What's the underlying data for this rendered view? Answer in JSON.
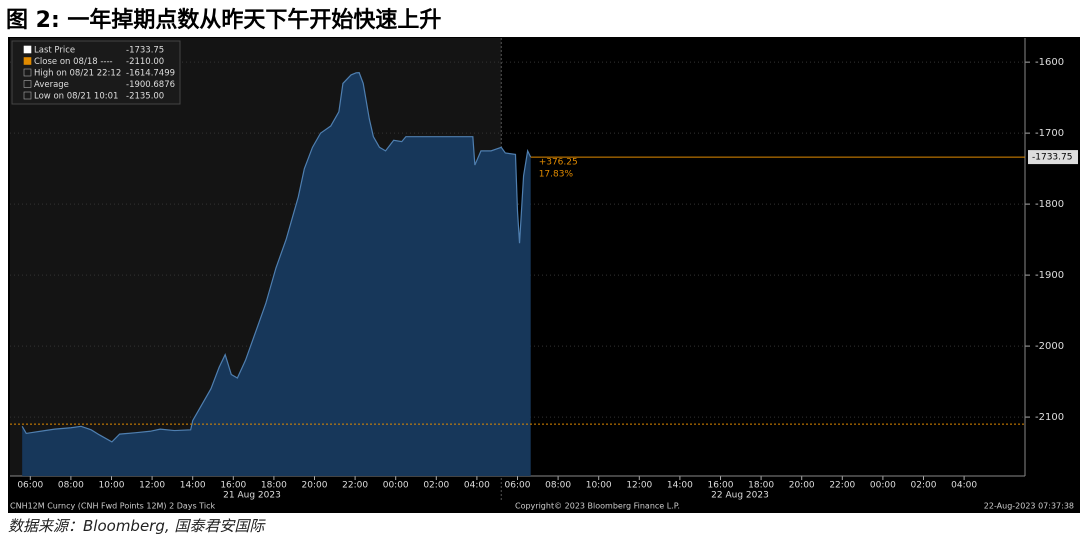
{
  "chart_data": {
    "type": "area",
    "title": "图 2:   一年掉期点数从昨天下午开始快速上升",
    "source": "数据来源：Bloomberg, 国泰君安国际",
    "footer_left": "CNH12M Curncy (CNH Fwd Points 12M) 2 Days  Tick",
    "footer_center": "Copyright© 2023 Bloomberg Finance L.P.",
    "footer_right": "22-Aug-2023 07:37:38",
    "date_labels": [
      "21 Aug 2023",
      "22 Aug 2023"
    ],
    "legend": [
      {
        "name": "Last Price",
        "value_label": "-1733.75"
      },
      {
        "name": "Close on 08/18 ----",
        "value_label": "-2110.00"
      },
      {
        "name": "High on 08/21 22:12",
        "value_label": "-1614.7499"
      },
      {
        "name": "Average",
        "value_label": "-1900.6876"
      },
      {
        "name": "Low on 08/21 10:01",
        "value_label": "-2135.00"
      }
    ],
    "last_price": -1733.75,
    "last_price_label": "-1733.75",
    "close": -2110,
    "change_labels": [
      "+376.25",
      "17.83%"
    ],
    "x": [
      5.6,
      5.8,
      6.5,
      7.2,
      8.0,
      8.5,
      9.0,
      9.4,
      10.02,
      10.4,
      11.2,
      11.9,
      12.4,
      13.1,
      13.9,
      14.0,
      14.4,
      14.9,
      15.3,
      15.6,
      15.9,
      16.2,
      16.6,
      17.1,
      17.6,
      18.1,
      18.6,
      18.9,
      19.2,
      19.5,
      19.9,
      20.3,
      20.8,
      21.2,
      21.4,
      21.8,
      22.05,
      22.2,
      22.4,
      22.7,
      22.9,
      23.2,
      23.5,
      23.9,
      24.3,
      24.5,
      26.2,
      27.8,
      27.9,
      28.2,
      28.7,
      29.2,
      29.4,
      29.9,
      30.0,
      30.1,
      30.3,
      30.5,
      30.65
    ],
    "series": [
      {
        "name": "Last Price",
        "color": "#4f7fb0",
        "values": [
          -2113,
          -2123,
          -2120,
          -2117,
          -2115,
          -2113,
          -2118,
          -2125,
          -2135,
          -2124,
          -2122,
          -2120,
          -2117,
          -2119,
          -2118,
          -2105,
          -2085,
          -2060,
          -2030,
          -2012,
          -2040,
          -2045,
          -2020,
          -1980,
          -1940,
          -1890,
          -1850,
          -1820,
          -1790,
          -1750,
          -1720,
          -1700,
          -1690,
          -1670,
          -1630,
          -1618,
          -1615,
          -1614.75,
          -1630,
          -1680,
          -1705,
          -1720,
          -1725,
          -1710,
          -1712,
          -1705,
          -1705,
          -1705,
          -1745,
          -1725,
          -1725,
          -1720,
          -1728,
          -1730,
          -1810,
          -1855,
          -1760,
          -1725,
          -1733.75
        ]
      }
    ],
    "xlim": [
      5,
      55
    ],
    "xticks": [
      {
        "value": 6,
        "label": "06:00"
      },
      {
        "value": 8,
        "label": "08:00"
      },
      {
        "value": 10,
        "label": "10:00"
      },
      {
        "value": 12,
        "label": "12:00"
      },
      {
        "value": 14,
        "label": "14:00"
      },
      {
        "value": 16,
        "label": "16:00"
      },
      {
        "value": 18,
        "label": "18:00"
      },
      {
        "value": 20,
        "label": "20:00"
      },
      {
        "value": 22,
        "label": "22:00"
      },
      {
        "value": 24,
        "label": "00:00"
      },
      {
        "value": 26,
        "label": "02:00"
      },
      {
        "value": 28,
        "label": "04:00"
      },
      {
        "value": 30,
        "label": "06:00"
      },
      {
        "value": 32,
        "label": "08:00"
      },
      {
        "value": 34,
        "label": "10:00"
      },
      {
        "value": 36,
        "label": "12:00"
      },
      {
        "value": 38,
        "label": "14:00"
      },
      {
        "value": 40,
        "label": "16:00"
      },
      {
        "value": 42,
        "label": "18:00"
      },
      {
        "value": 44,
        "label": "20:00"
      },
      {
        "value": 46,
        "label": "22:00"
      },
      {
        "value": 48,
        "label": "00:00"
      },
      {
        "value": 50,
        "label": "02:00"
      },
      {
        "value": 52,
        "label": "04:00"
      }
    ],
    "ylim": [
      -2183,
      -1566
    ],
    "yticks": [
      -1600,
      -1700,
      -1800,
      -1900,
      -2000,
      -2100
    ],
    "grid": true
  }
}
